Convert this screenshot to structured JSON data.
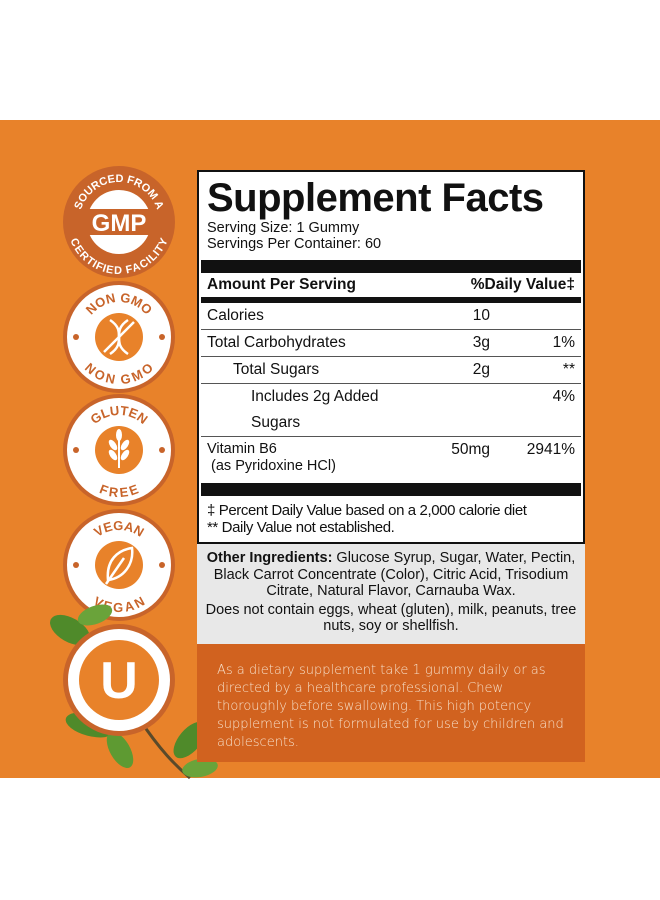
{
  "badges": {
    "gmp": {
      "top": "SOURCED FROM A",
      "center": "GMP",
      "bottom": "CERTIFIED FACILITY"
    },
    "nongmo": {
      "top": "NON GMO",
      "bottom": "NON GMO",
      "icon": "dna-crossed-icon"
    },
    "gluten": {
      "top": "GLUTEN",
      "bottom": "FREE",
      "icon": "wheat-icon"
    },
    "vegan": {
      "top": "VEGAN",
      "bottom": "VEGAN",
      "icon": "leaf-icon"
    },
    "kosher": {
      "letter": "U"
    }
  },
  "facts": {
    "title": "Supplement Facts",
    "serving_size": "Serving Size: 1 Gummy",
    "servings_per_container": "Servings Per Container: 60",
    "header_left": "Amount Per Serving",
    "header_right": "%Daily Value‡",
    "rows": [
      {
        "name": "Calories",
        "amount": "10",
        "dv": ""
      },
      {
        "name": "Total Carbohydrates",
        "amount": "3g",
        "dv": "1%"
      },
      {
        "name": "Total Sugars",
        "amount": "2g",
        "dv": "**"
      },
      {
        "name": "Includes 2g Added Sugars",
        "amount": "",
        "dv": "4%"
      },
      {
        "name": "Vitamin B6",
        "sub": "(as Pyridoxine HCl)",
        "amount": "50mg",
        "dv": "2941%"
      }
    ],
    "footnote1": "‡ Percent Daily Value based on a 2,000 calorie diet",
    "footnote2": "** Daily Value not established."
  },
  "ingredients": {
    "label": "Other Ingredients:",
    "text": " Glucose Syrup, Sugar, Water, Pectin, Black Carrot Concentrate (Color), Citric Acid, Trisodium Citrate, Natural Flavor, Carnauba Wax.",
    "allergens": "Does not contain eggs, wheat (gluten), milk, peanuts, tree nuts, soy or shellfish."
  },
  "directions": "As a dietary supplement take 1 gummy daily or as directed by a healthcare professional. Chew thoroughly before swallowing. This high potency supplement is not formulated for use by children and adolescents.",
  "colors": {
    "orange": "#E8822A",
    "dark_orange": "#D1621F",
    "badge_ring": "#C8642A"
  }
}
